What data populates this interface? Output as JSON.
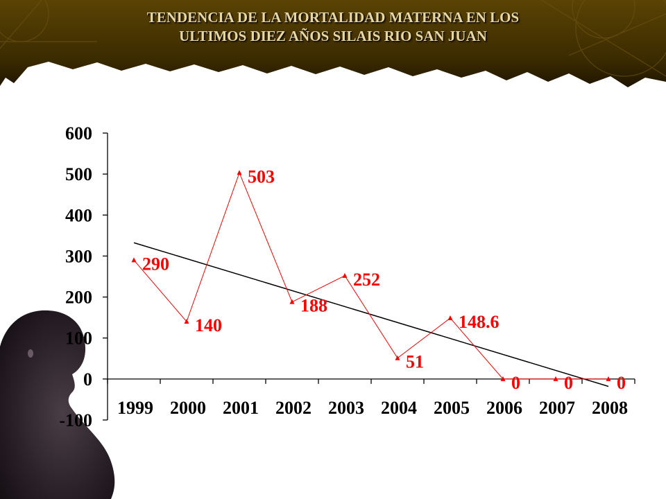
{
  "slide": {
    "title_line1": "TENDENCIA DE LA MORTALIDAD MATERNA EN LOS",
    "title_line2": "ULTIMOS DIEZ AÑOS SILAIS RIO SAN JUAN"
  },
  "colors": {
    "banner": "#3a2a00",
    "title_text": "#e6d7a6",
    "series": "#ff0000",
    "trendline": "#000000",
    "axis": "#000000"
  },
  "chart_data": {
    "type": "line",
    "title": "",
    "xlabel": "",
    "ylabel": "",
    "ylim": [
      -100,
      600
    ],
    "yticks": [
      600,
      500,
      400,
      300,
      200,
      100,
      0,
      -100
    ],
    "categories": [
      "1999",
      "2000",
      "2001",
      "2002",
      "2003",
      "2004",
      "2005",
      "2006",
      "2007",
      "2008"
    ],
    "series": [
      {
        "values": [
          290,
          140,
          503,
          188,
          252,
          51,
          148.6,
          0,
          0,
          0
        ],
        "labels": [
          "290",
          "140",
          "503",
          "188",
          "252",
          "51",
          "148.6",
          "0",
          "0",
          "0"
        ],
        "marker": "triangle"
      }
    ],
    "trendline": {
      "type": "linear"
    },
    "grid": false,
    "legend": "none"
  }
}
